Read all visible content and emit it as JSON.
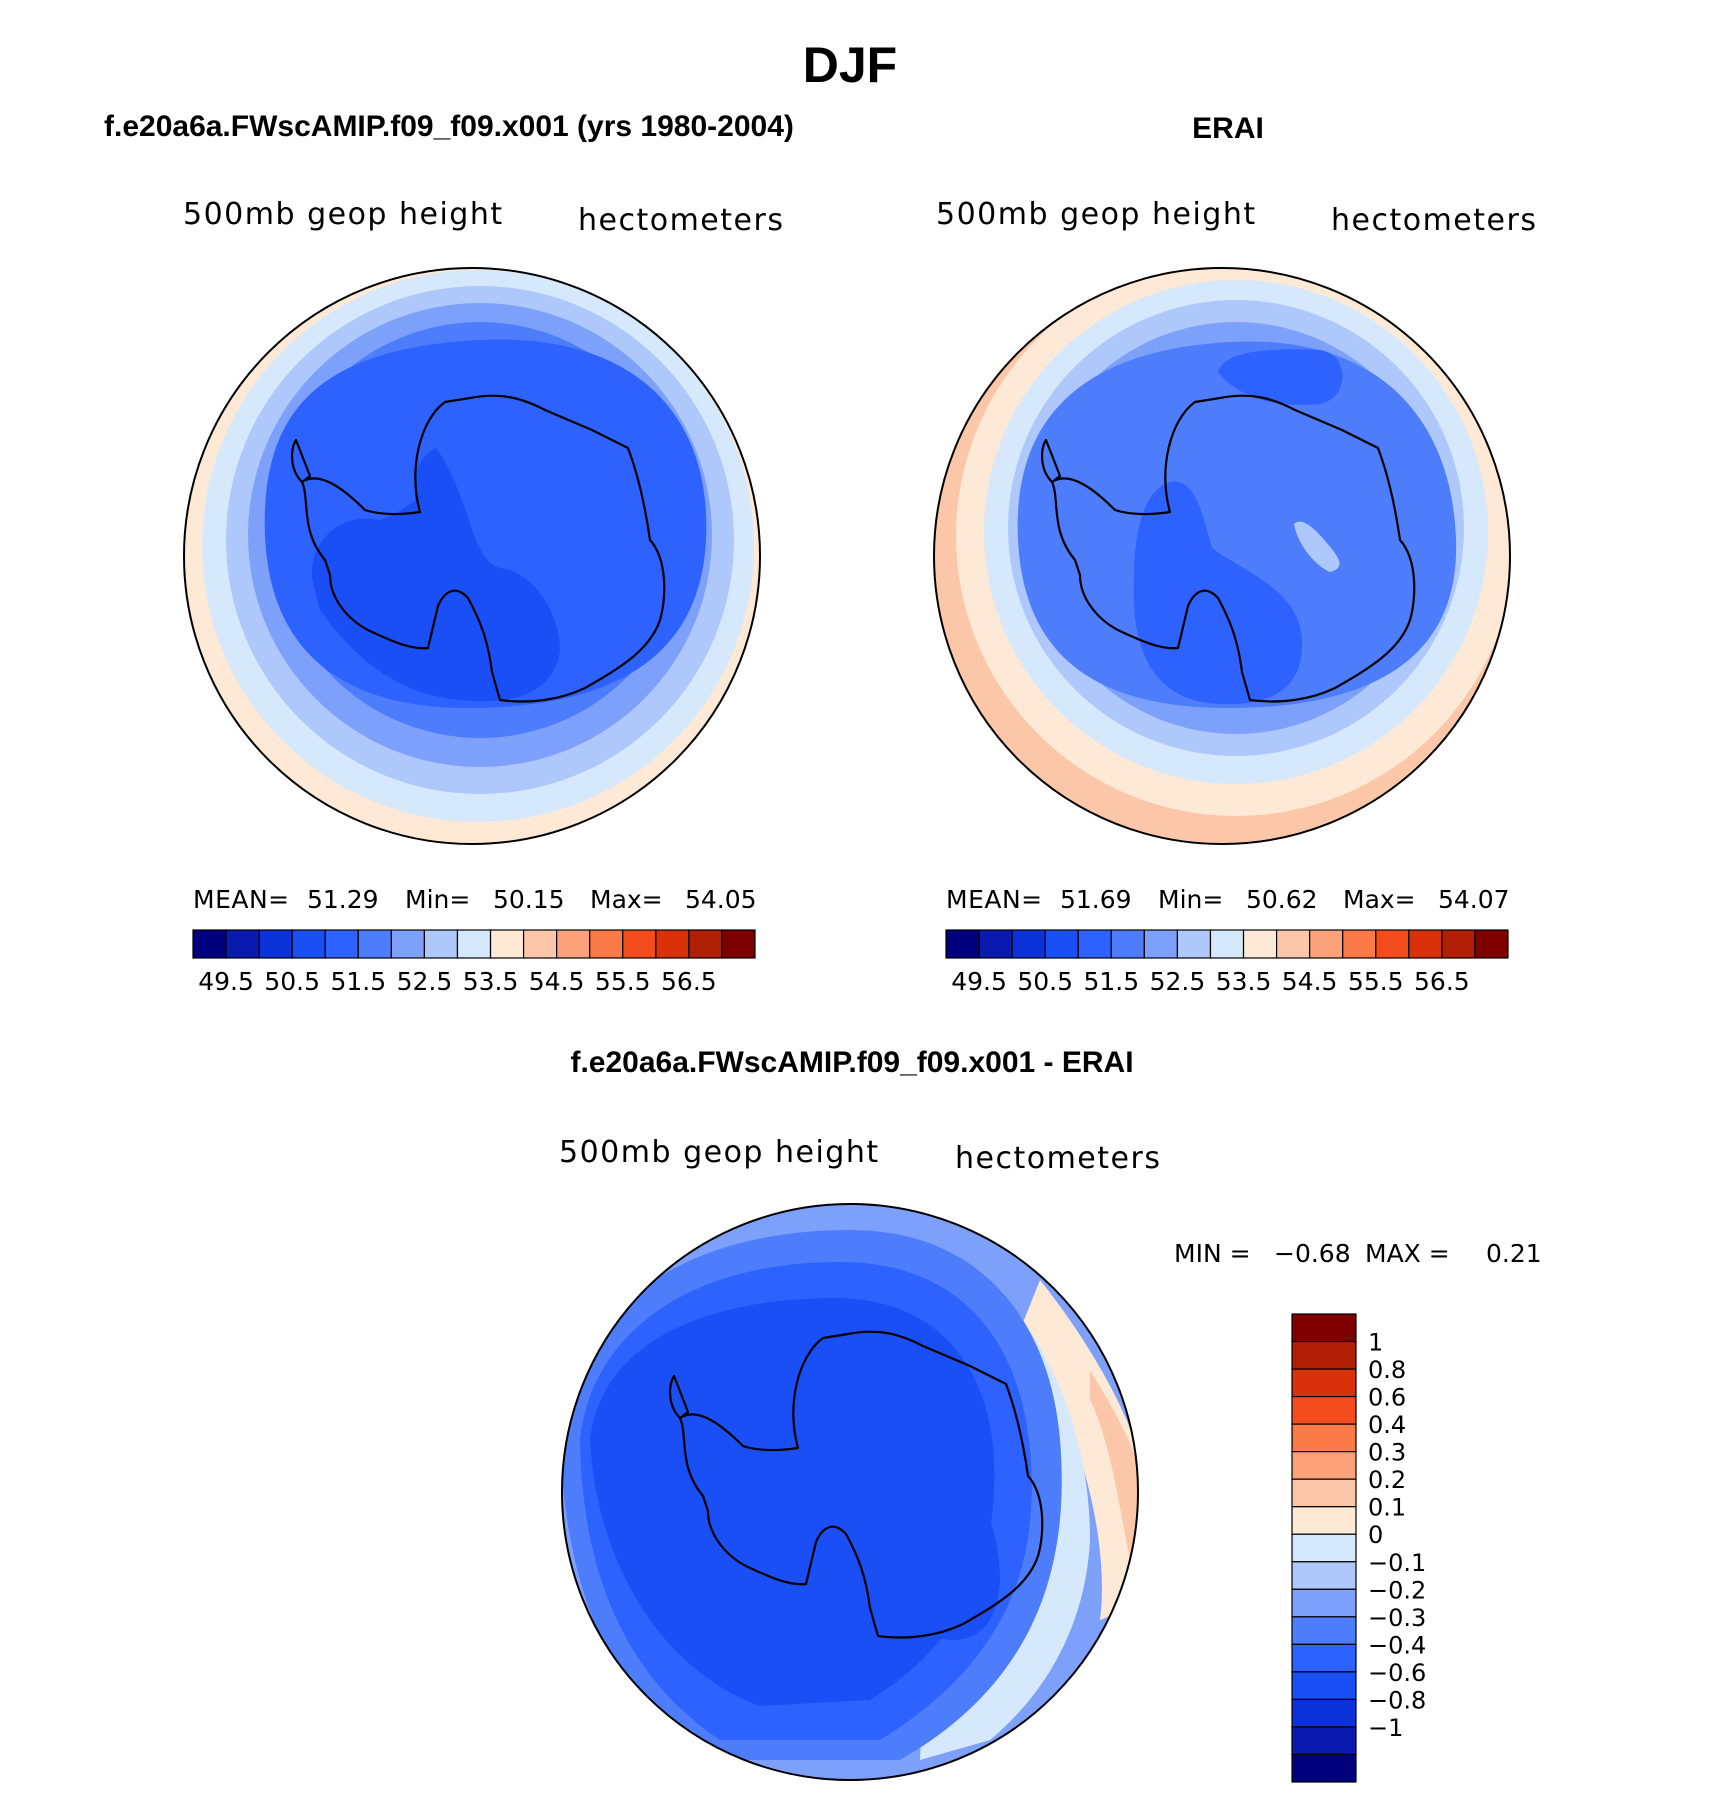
{
  "chart_data": {
    "type": "contour",
    "title": "DJF",
    "panels": [
      {
        "id": "model",
        "title": "f.e20a6a.FWscAMIP.f09_f09.x001 (yrs 1980-2004)",
        "variable": "500mb geop height",
        "units": "hectometers",
        "stats": {
          "mean_label": "MEAN=",
          "mean": "51.29",
          "min_label": "Min=",
          "min": "50.15",
          "max_label": "Max=",
          "max": "54.05"
        },
        "levels": [
          49.5,
          50,
          50.5,
          51,
          51.5,
          52,
          52.5,
          53,
          53.5,
          54,
          54.5,
          55,
          55.5,
          56,
          56.5
        ],
        "tick_labels": [
          "49.5",
          "50.5",
          "51.5",
          "52.5",
          "53.5",
          "54.5",
          "55.5",
          "56.5"
        ],
        "ring_levels": [
          53.5,
          53,
          52.5,
          52,
          51.5,
          51,
          51
        ],
        "center_level": 50.5
      },
      {
        "id": "obs",
        "title": "ERAI",
        "variable": "500mb geop height",
        "units": "hectometers",
        "stats": {
          "mean_label": "MEAN=",
          "mean": "51.69",
          "min_label": "Min=",
          "min": "50.62",
          "max_label": "Max=",
          "max": "54.07"
        },
        "levels": [
          49.5,
          50,
          50.5,
          51,
          51.5,
          52,
          52.5,
          53,
          53.5,
          54,
          54.5,
          55,
          55.5,
          56,
          56.5
        ],
        "tick_labels": [
          "49.5",
          "50.5",
          "51.5",
          "52.5",
          "53.5",
          "54.5",
          "55.5",
          "56.5"
        ],
        "ring_levels": [
          54,
          53.5,
          53,
          52.5,
          52,
          51.5,
          51.5
        ],
        "center_level": 51
      },
      {
        "id": "diff",
        "title": "f.e20a6a.FWscAMIP.f09_f09.x001 - ERAI",
        "variable": "500mb geop height",
        "units": "hectometers",
        "stats": {
          "min_label": "MIN =",
          "min": "−0.68",
          "max_label": "MAX =",
          "max": "0.21"
        },
        "levels": [
          -1,
          -0.8,
          -0.6,
          -0.4,
          -0.3,
          -0.2,
          -0.1,
          0,
          0.1,
          0.2,
          0.3,
          0.4,
          0.6,
          0.8,
          1
        ],
        "tick_labels": [
          "1",
          "0.8",
          "0.6",
          "0.4",
          "0.3",
          "0.2",
          "0.1",
          "0",
          "−0.1",
          "−0.2",
          "−0.3",
          "−0.4",
          "−0.6",
          "−0.8",
          "−1"
        ],
        "ring_levels": [
          -0.2,
          -0.3,
          -0.4,
          -0.4
        ],
        "center_level": -0.6
      }
    ],
    "colorbar_colors": [
      "#00007f",
      "#0a1aaf",
      "#0a32d8",
      "#1a4ff5",
      "#2e62ff",
      "#4d7dfb",
      "#7da1fb",
      "#aec8fb",
      "#d6e8fb",
      "#fde9d6",
      "#fcc6a8",
      "#fca17a",
      "#fc7a48",
      "#f54c1e",
      "#d9310a",
      "#b01e04",
      "#7e0000"
    ]
  }
}
